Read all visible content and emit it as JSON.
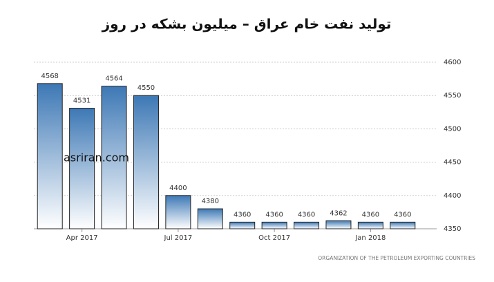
{
  "chart_data": {
    "type": "bar",
    "title": "تولید نفت خام عراق – میلیون بشکه در روز",
    "watermark": "asriran.com",
    "source": "ORGANIZATION OF THE PETROLEUM EXPORTING COUNTRIES",
    "categories": [
      null,
      "Apr 2017",
      null,
      null,
      "Jul 2017",
      null,
      null,
      "Oct 2017",
      null,
      null,
      "Jan 2018",
      null
    ],
    "values": [
      4568,
      4531,
      4564,
      4550,
      4400,
      4380,
      4360,
      4360,
      4360,
      4362,
      4360,
      4360
    ],
    "color": "#3d78b5",
    "ylim": [
      4350,
      4600
    ],
    "yticks": [
      4350,
      4400,
      4450,
      4500,
      4550,
      4600
    ],
    "grid": true
  }
}
